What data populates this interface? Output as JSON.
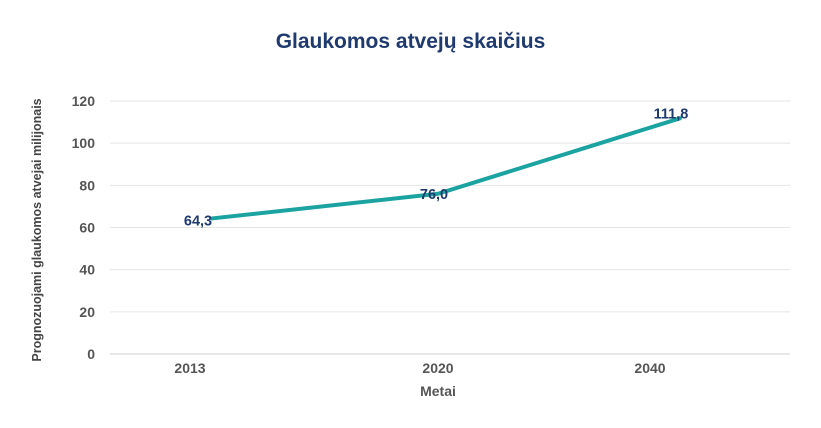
{
  "chart_data": {
    "type": "line",
    "title": "Glaukomos atvejų skaičius",
    "xlabel": "Metai",
    "ylabel": "Prognozuojami glaukomos atvejai milijonais",
    "categories": [
      "2013",
      "2020",
      "2040"
    ],
    "series": [
      {
        "values": [
          64.3,
          76.0,
          111.8
        ],
        "labels": [
          "64,3",
          "76,0",
          "111,8"
        ]
      }
    ],
    "ylim": [
      0,
      120
    ],
    "yticks": [
      0,
      20,
      40,
      60,
      80,
      100,
      120
    ],
    "grid": true,
    "line_color": "#1aa3a0",
    "label_color": "#1f3a6e"
  }
}
